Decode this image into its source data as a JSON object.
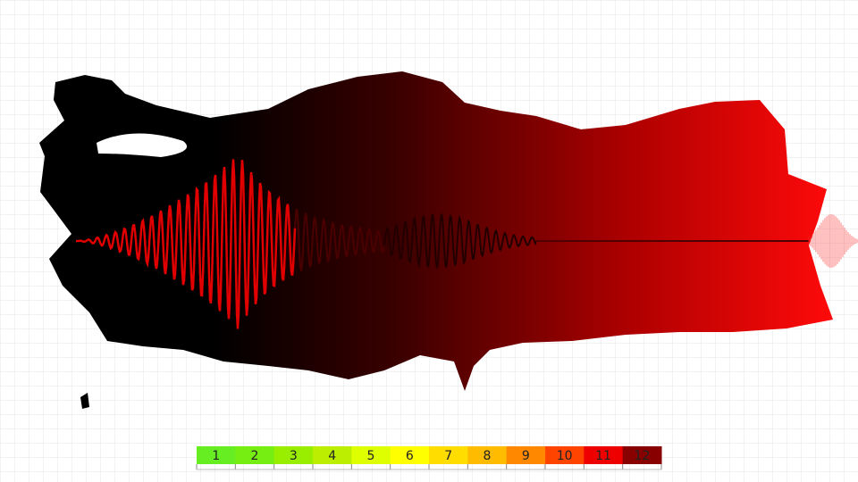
{
  "scale": {
    "steps": [
      {
        "label": 1,
        "color": "#66ee22"
      },
      {
        "label": 2,
        "color": "#77ee11"
      },
      {
        "label": 3,
        "color": "#99ee00"
      },
      {
        "label": 4,
        "color": "#bbee00"
      },
      {
        "label": 5,
        "color": "#ddff00"
      },
      {
        "label": 6,
        "color": "#ffff00"
      },
      {
        "label": 7,
        "color": "#ffdd00"
      },
      {
        "label": 8,
        "color": "#ffbb00"
      },
      {
        "label": 9,
        "color": "#ff8800"
      },
      {
        "label": 10,
        "color": "#ff4400"
      },
      {
        "label": 11,
        "color": "#ee0000"
      },
      {
        "label": 12,
        "color": "#880000"
      }
    ]
  }
}
